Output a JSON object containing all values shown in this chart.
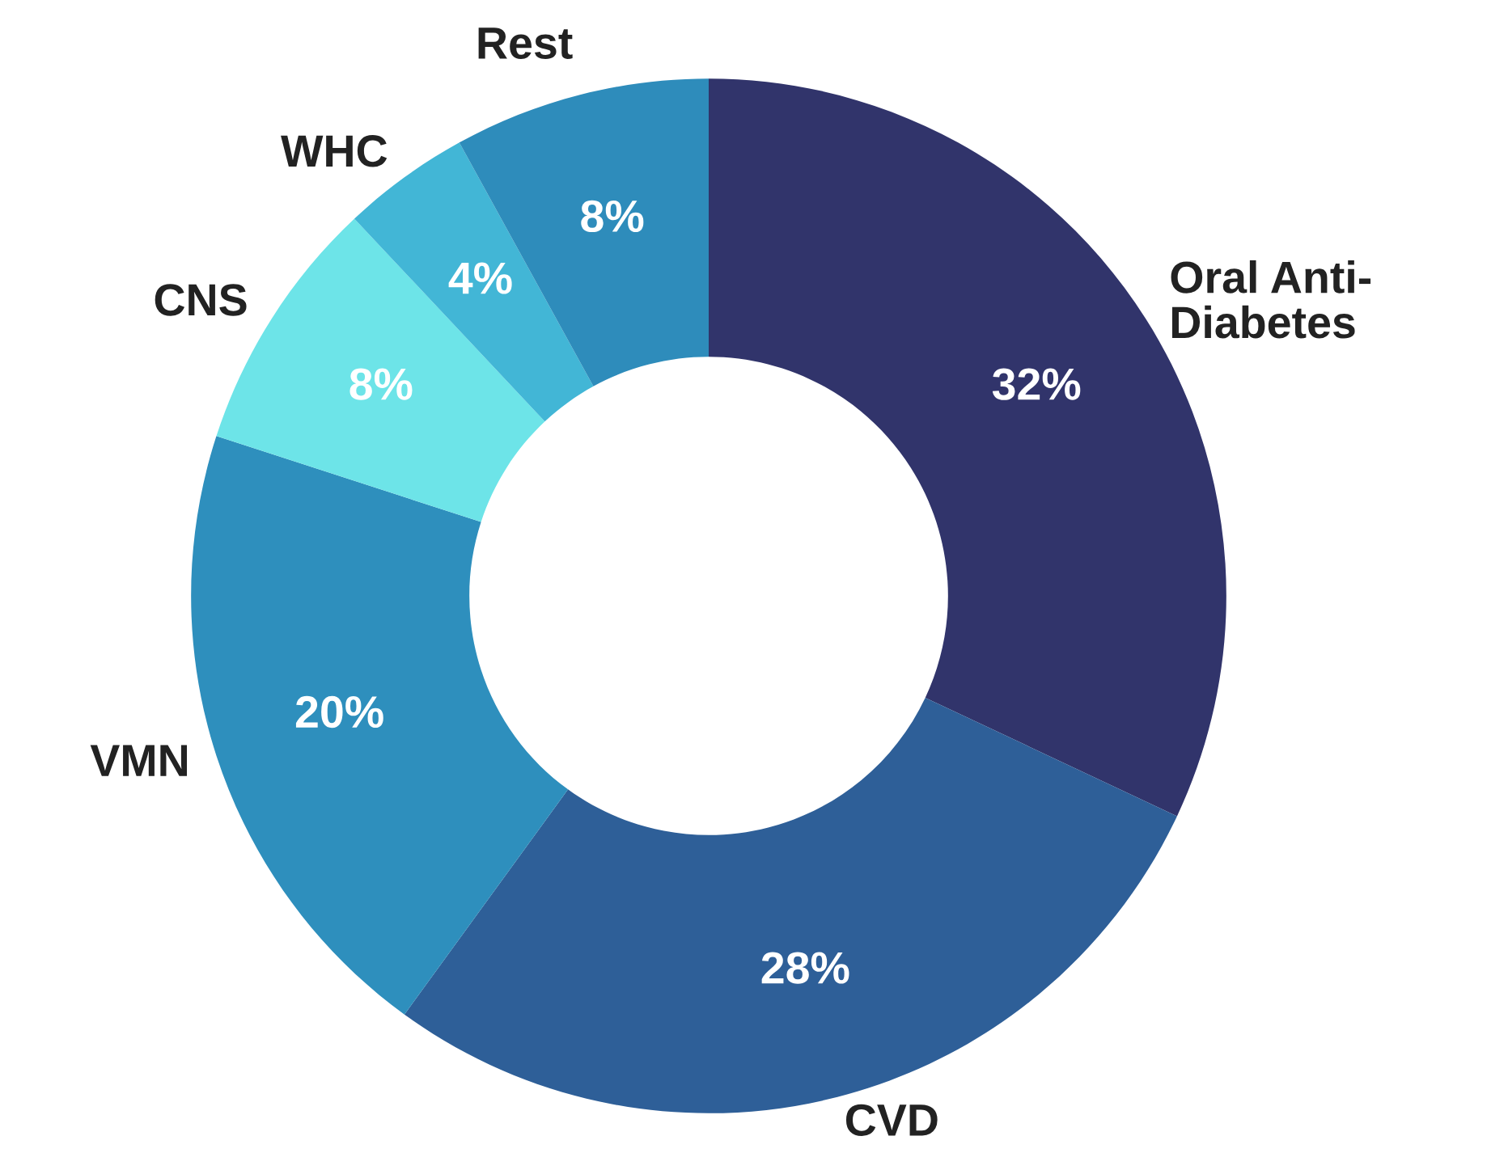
{
  "chart_data": {
    "type": "donut",
    "categories": [
      "Oral Anti-\nDiabetes",
      "CVD",
      "VMN",
      "CNS",
      "WHC",
      "Rest"
    ],
    "values": [
      32,
      28,
      20,
      8,
      4,
      8
    ],
    "colors": [
      "#31346b",
      "#2e5f98",
      "#2e8fbd",
      "#6de4e8",
      "#42b6d6",
      "#2e8cbb"
    ],
    "value_labels": [
      "32%",
      "28%",
      "20%",
      "8%",
      "4%",
      "8%"
    ],
    "legend": false
  }
}
